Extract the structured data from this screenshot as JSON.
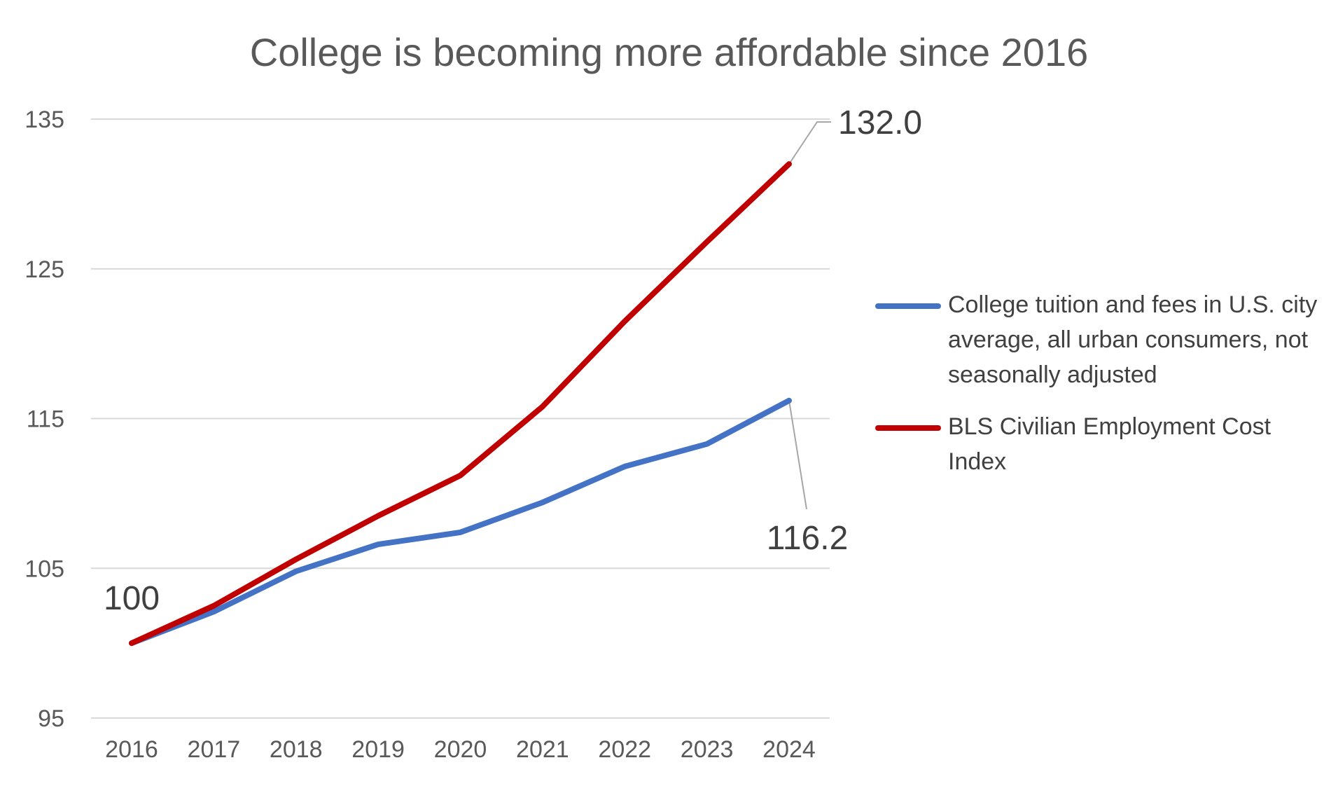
{
  "chart_data": {
    "type": "line",
    "title": "College is becoming more affordable since 2016",
    "x": [
      "2016",
      "2017",
      "2018",
      "2019",
      "2020",
      "2021",
      "2022",
      "2023",
      "2024"
    ],
    "series": [
      {
        "name": "College tuition and fees in U.S. city average, all urban consumers, not seasonally adjusted",
        "color": "#4472C4",
        "values": [
          100,
          102.1,
          104.8,
          106.6,
          107.4,
          109.4,
          111.8,
          113.3,
          116.2
        ]
      },
      {
        "name": "BLS Civilian Employment Cost Index",
        "color": "#C00000",
        "values": [
          100,
          102.5,
          105.6,
          108.5,
          111.2,
          115.8,
          121.5,
          126.8,
          132.0
        ]
      }
    ],
    "yticks": [
      "95",
      "105",
      "115",
      "125",
      "135"
    ],
    "ylim": [
      95,
      135
    ],
    "grid": "horizontal",
    "legend_position": "right",
    "data_labels": {
      "start": "100",
      "tuition_end": "116.2",
      "eci_end": "132.0"
    }
  }
}
